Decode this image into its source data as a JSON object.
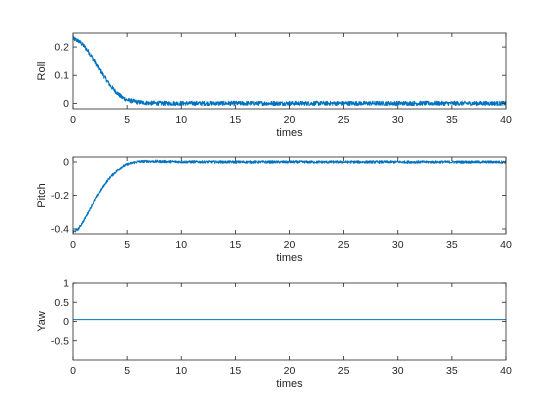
{
  "chart_data": [
    {
      "type": "line",
      "title": "",
      "xlabel": "times",
      "ylabel": "Roll",
      "xlim": [
        0,
        40
      ],
      "ylim": [
        -0.02,
        0.25
      ],
      "xticks": [
        0,
        5,
        10,
        15,
        20,
        25,
        30,
        35,
        40
      ],
      "yticks": [
        0,
        0.1,
        0.2
      ],
      "ytick_labels": [
        "0",
        "0.1",
        "0.2"
      ],
      "grid": false,
      "color": "#0072BD",
      "series": [
        {
          "x": [
            0,
            0.5,
            1,
            1.5,
            2,
            2.5,
            3,
            3.5,
            4,
            4.5,
            5,
            6,
            7,
            8,
            10,
            15,
            20,
            25,
            30,
            35,
            40
          ],
          "y": [
            0.23,
            0.222,
            0.205,
            0.18,
            0.15,
            0.118,
            0.088,
            0.06,
            0.04,
            0.022,
            0.012,
            0.004,
            0.001,
            0,
            0,
            0,
            0,
            0,
            0,
            0,
            0
          ],
          "noise_amplitude": 0.008
        }
      ]
    },
    {
      "type": "line",
      "title": "",
      "xlabel": "times",
      "ylabel": "Pitch",
      "xlim": [
        0,
        40
      ],
      "ylim": [
        -0.43,
        0.03
      ],
      "xticks": [
        0,
        5,
        10,
        15,
        20,
        25,
        30,
        35,
        40
      ],
      "yticks": [
        -0.4,
        -0.2,
        0
      ],
      "ytick_labels": [
        "-0.4",
        "-0.2",
        "0"
      ],
      "grid": false,
      "color": "#0072BD",
      "series": [
        {
          "x": [
            0,
            0.5,
            1,
            1.5,
            2,
            2.5,
            3,
            3.5,
            4,
            4.5,
            5,
            5.5,
            6,
            7,
            8,
            10,
            15,
            20,
            25,
            30,
            35,
            40
          ],
          "y": [
            -0.42,
            -0.4,
            -0.35,
            -0.29,
            -0.23,
            -0.175,
            -0.125,
            -0.085,
            -0.055,
            -0.03,
            -0.015,
            -0.005,
            0.002,
            0.004,
            0.003,
            0.001,
            0,
            0,
            0,
            0,
            0,
            0
          ],
          "noise_amplitude": 0.008
        }
      ]
    },
    {
      "type": "line",
      "title": "",
      "xlabel": "times",
      "ylabel": "Yaw",
      "xlim": [
        0,
        40
      ],
      "ylim": [
        -1,
        1
      ],
      "xticks": [
        0,
        5,
        10,
        15,
        20,
        25,
        30,
        35,
        40
      ],
      "yticks": [
        -0.5,
        0,
        0.5,
        1
      ],
      "ytick_labels": [
        "-0.5",
        "0",
        "0.5",
        "1"
      ],
      "grid": false,
      "color": "#0072BD",
      "series": [
        {
          "x": [
            0,
            40
          ],
          "y": [
            0.05,
            0.05
          ],
          "noise_amplitude": 0
        }
      ]
    }
  ]
}
